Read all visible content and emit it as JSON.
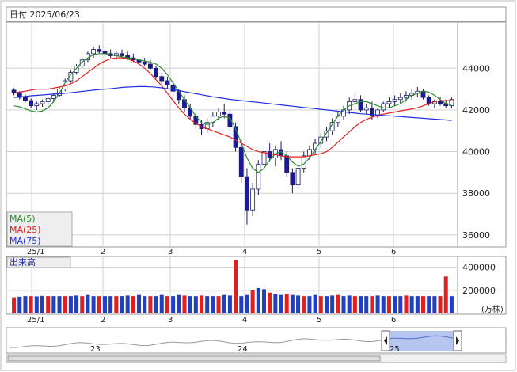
{
  "header": {
    "title": "日付 2025/06/23"
  },
  "colors": {
    "up": "#ffffff",
    "down": "#1a1aa0",
    "ma5": "#2e8b2e",
    "ma25": "#e02020",
    "ma75": "#2030e0",
    "vol_normal": "#2040c0",
    "vol_high": "#e02020",
    "grid": "#d0d0d0",
    "nav_fill": "#aabbee"
  },
  "legend": {
    "ma5": "MA(5)",
    "ma25": "MA(25)",
    "ma75": "MA(75)"
  },
  "volume_label": "出来高",
  "volume_unit": "(万株)",
  "nav_labels": [
    "23",
    "24",
    "25"
  ],
  "chart_data": [
    {
      "type": "line",
      "title": "",
      "x_ticks": [
        "25/1",
        "2",
        "3",
        "4",
        "5",
        "6"
      ],
      "y_ticks": [
        36000,
        38000,
        40000,
        42000,
        44000
      ],
      "ylim": [
        35500,
        46100
      ],
      "series": [
        {
          "name": "MA(5)",
          "values": [
            42200,
            42150,
            42050,
            41950,
            41900,
            41950,
            42100,
            42400,
            42800,
            43300,
            43700,
            44000,
            44300,
            44500,
            44650,
            44700,
            44700,
            44650,
            44600,
            44550,
            44500,
            44450,
            44400,
            44350,
            44300,
            44200,
            44000,
            43700,
            43300,
            42900,
            42500,
            42100,
            41700,
            41400,
            41300,
            41400,
            41600,
            41700,
            41600,
            41100,
            40400,
            39700,
            39200,
            39000,
            39200,
            39600,
            39900,
            40000,
            39800,
            39500,
            39300,
            39400,
            39700,
            40100,
            40500,
            40900,
            41300,
            41700,
            42000,
            42200,
            42300,
            42400,
            42400,
            42300,
            42200,
            42100,
            42100,
            42200,
            42300,
            42500,
            42700,
            42800,
            42900,
            42850,
            42700,
            42500,
            42300,
            42250
          ]
        },
        {
          "name": "MA(25)",
          "values": [
            42800,
            42850,
            42900,
            42950,
            43000,
            43000,
            43000,
            43050,
            43100,
            43150,
            43250,
            43400,
            43600,
            43800,
            44000,
            44200,
            44350,
            44450,
            44500,
            44500,
            44450,
            44350,
            44200,
            44000,
            43750,
            43450,
            43150,
            42800,
            42450,
            42100,
            41800,
            41550,
            41350,
            41200,
            41100,
            41000,
            40900,
            40800,
            40700,
            40550,
            40400,
            40250,
            40100,
            40000,
            39950,
            39900,
            39850,
            39800,
            39750,
            39750,
            39750,
            39750,
            39800,
            39850,
            39900,
            40000,
            40200,
            40450,
            40700,
            40950,
            41200,
            41400,
            41550,
            41650,
            41750,
            41800,
            41850,
            41900,
            41950,
            42000,
            42050,
            42100,
            42200,
            42300,
            42400,
            42450,
            42450,
            42450
          ]
        },
        {
          "name": "MA(75)",
          "values": [
            42600,
            42620,
            42650,
            42680,
            42700,
            42720,
            42740,
            42760,
            42780,
            42800,
            42830,
            42860,
            42890,
            42920,
            42950,
            42980,
            43000,
            43020,
            43050,
            43080,
            43100,
            43110,
            43120,
            43120,
            43110,
            43090,
            43060,
            43020,
            42980,
            42930,
            42880,
            42830,
            42780,
            42730,
            42680,
            42630,
            42590,
            42550,
            42510,
            42480,
            42450,
            42420,
            42390,
            42360,
            42330,
            42300,
            42270,
            42240,
            42210,
            42180,
            42150,
            42120,
            42090,
            42060,
            42030,
            42000,
            41970,
            41940,
            41910,
            41880,
            41850,
            41820,
            41800,
            41780,
            41760,
            41740,
            41720,
            41700,
            41680,
            41660,
            41640,
            41620,
            41600,
            41580,
            41560,
            41540,
            41520,
            41500
          ]
        }
      ],
      "ohlc": [
        [
          42950,
          43050,
          42700,
          42850
        ],
        [
          42850,
          42900,
          42500,
          42600
        ],
        [
          42600,
          42750,
          42350,
          42450
        ],
        [
          42450,
          42550,
          42100,
          42200
        ],
        [
          42200,
          42400,
          42000,
          42300
        ],
        [
          42300,
          42500,
          42150,
          42400
        ],
        [
          42400,
          42650,
          42300,
          42550
        ],
        [
          42550,
          42800,
          42400,
          42700
        ],
        [
          42700,
          43100,
          42600,
          43000
        ],
        [
          43000,
          43500,
          42900,
          43400
        ],
        [
          43400,
          43900,
          43300,
          43800
        ],
        [
          43800,
          44200,
          43700,
          44100
        ],
        [
          44100,
          44500,
          44000,
          44400
        ],
        [
          44400,
          44800,
          44300,
          44700
        ],
        [
          44700,
          45000,
          44500,
          44900
        ],
        [
          44900,
          45100,
          44700,
          44800
        ],
        [
          44800,
          45000,
          44600,
          44700
        ],
        [
          44700,
          44900,
          44500,
          44600
        ],
        [
          44600,
          44800,
          44400,
          44700
        ],
        [
          44700,
          44900,
          44500,
          44600
        ],
        [
          44600,
          44800,
          44400,
          44500
        ],
        [
          44500,
          44700,
          44300,
          44400
        ],
        [
          44400,
          44600,
          44200,
          44300
        ],
        [
          44300,
          44500,
          44100,
          44200
        ],
        [
          44200,
          44400,
          43900,
          44000
        ],
        [
          44000,
          44100,
          43500,
          43600
        ],
        [
          43600,
          43800,
          43200,
          43400
        ],
        [
          43400,
          43600,
          43000,
          43200
        ],
        [
          43200,
          43400,
          42700,
          42900
        ],
        [
          42900,
          43000,
          42300,
          42500
        ],
        [
          42500,
          42700,
          41900,
          42100
        ],
        [
          42100,
          42300,
          41500,
          41700
        ],
        [
          41700,
          41900,
          41100,
          41300
        ],
        [
          41300,
          41500,
          40800,
          41100
        ],
        [
          41100,
          41600,
          40900,
          41400
        ],
        [
          41400,
          41900,
          41200,
          41700
        ],
        [
          41700,
          42100,
          41500,
          41900
        ],
        [
          41900,
          42300,
          41600,
          41800
        ],
        [
          41800,
          42000,
          41000,
          41200
        ],
        [
          41200,
          41400,
          40000,
          40200
        ],
        [
          40200,
          40600,
          38500,
          38800
        ],
        [
          38800,
          39200,
          36500,
          37200
        ],
        [
          37200,
          38500,
          36900,
          38200
        ],
        [
          38200,
          39600,
          37900,
          39400
        ],
        [
          39400,
          40200,
          39200,
          40000
        ],
        [
          40000,
          40400,
          39500,
          39700
        ],
        [
          39700,
          40300,
          39300,
          40100
        ],
        [
          40100,
          40500,
          39600,
          39800
        ],
        [
          39800,
          40000,
          38800,
          39000
        ],
        [
          39000,
          39200,
          38000,
          38400
        ],
        [
          38400,
          39400,
          38200,
          39200
        ],
        [
          39200,
          40000,
          39000,
          39800
        ],
        [
          39800,
          40300,
          39600,
          40100
        ],
        [
          40100,
          40600,
          39900,
          40400
        ],
        [
          40400,
          40900,
          40200,
          40700
        ],
        [
          40700,
          41200,
          40500,
          41000
        ],
        [
          41000,
          41600,
          40800,
          41400
        ],
        [
          41400,
          41900,
          41200,
          41700
        ],
        [
          41700,
          42200,
          41500,
          42000
        ],
        [
          42000,
          42600,
          41800,
          42400
        ],
        [
          42400,
          42800,
          42200,
          42500
        ],
        [
          42500,
          42700,
          41900,
          42000
        ],
        [
          42000,
          42300,
          41800,
          42100
        ],
        [
          42100,
          42400,
          41500,
          41700
        ],
        [
          41700,
          42100,
          41600,
          42000
        ],
        [
          42000,
          42400,
          41900,
          42300
        ],
        [
          42300,
          42600,
          42100,
          42400
        ],
        [
          42400,
          42700,
          42200,
          42500
        ],
        [
          42500,
          42800,
          42300,
          42600
        ],
        [
          42600,
          42900,
          42400,
          42700
        ],
        [
          42700,
          43000,
          42500,
          42800
        ],
        [
          42800,
          43100,
          42600,
          42900
        ],
        [
          42900,
          43000,
          42500,
          42600
        ],
        [
          42600,
          42700,
          42200,
          42300
        ],
        [
          42300,
          42500,
          42100,
          42400
        ],
        [
          42400,
          42600,
          42200,
          42300
        ],
        [
          42300,
          42500,
          42100,
          42200
        ],
        [
          42200,
          42600,
          42100,
          42500
        ]
      ]
    },
    {
      "type": "bar",
      "title": "出来高",
      "y_ticks": [
        200000,
        400000
      ],
      "ylim": [
        0,
        480000
      ],
      "unit": "(万株)",
      "values": [
        140000,
        145000,
        150000,
        150000,
        148000,
        152000,
        150000,
        150000,
        150000,
        150000,
        150000,
        155000,
        150000,
        160000,
        150000,
        150000,
        150000,
        150000,
        150000,
        150000,
        155000,
        150000,
        160000,
        150000,
        150000,
        150000,
        160000,
        150000,
        150000,
        160000,
        155000,
        150000,
        150000,
        155000,
        150000,
        150000,
        150000,
        160000,
        155000,
        465000,
        150000,
        160000,
        200000,
        220000,
        210000,
        180000,
        170000,
        160000,
        165000,
        160000,
        155000,
        150000,
        150000,
        160000,
        150000,
        150000,
        155000,
        160000,
        150000,
        155000,
        150000,
        150000,
        150000,
        150000,
        155000,
        150000,
        150000,
        150000,
        150000,
        155000,
        150000,
        150000,
        150000,
        150000,
        150000,
        150000,
        320000,
        150000
      ],
      "highlight": [
        39,
        76
      ]
    }
  ]
}
